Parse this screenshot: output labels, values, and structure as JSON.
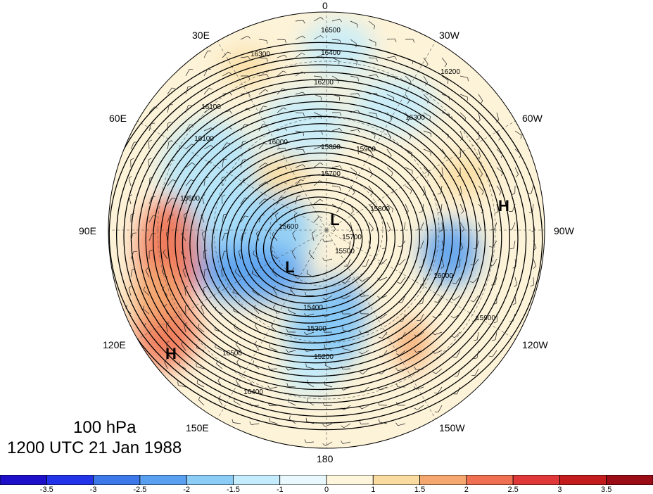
{
  "title": {
    "level": "100 hPa",
    "datetime": "1200 UTC 21 Jan 1988"
  },
  "longitude_labels": [
    {
      "id": "lon-0",
      "text": "0"
    },
    {
      "id": "lon-30w",
      "text": "30W"
    },
    {
      "id": "lon-60w",
      "text": "60W"
    },
    {
      "id": "lon-90w",
      "text": "90W"
    },
    {
      "id": "lon-120w",
      "text": "120W"
    },
    {
      "id": "lon-150w",
      "text": "150W"
    },
    {
      "id": "lon-180",
      "text": "180"
    },
    {
      "id": "lon-150e",
      "text": "150E"
    },
    {
      "id": "lon-120e",
      "text": "120E"
    },
    {
      "id": "lon-90e",
      "text": "90E"
    },
    {
      "id": "lon-60e",
      "text": "60E"
    },
    {
      "id": "lon-30e",
      "text": "30E"
    }
  ],
  "pressure_centers": [
    {
      "label": "L",
      "kind": "low"
    },
    {
      "label": "L",
      "kind": "low"
    },
    {
      "label": "H",
      "kind": "high"
    },
    {
      "label": "H",
      "kind": "high"
    }
  ],
  "contour_labels": [
    "16500",
    "16400",
    "16300",
    "16200",
    "16100",
    "16000",
    "15900",
    "15800",
    "15700",
    "15600",
    "15500",
    "15400",
    "15300",
    "15200"
  ],
  "colorbar": {
    "ticks": [
      "-3.5",
      "-3",
      "-2.5",
      "-2",
      "-1.5",
      "-1",
      "0",
      "1",
      "1.5",
      "2",
      "2.5",
      "3",
      "3.5"
    ],
    "colors": [
      "#1d10c8",
      "#2233e8",
      "#3c78e8",
      "#5aa0f0",
      "#8ccdf8",
      "#c4ecfc",
      "#e8f8fc",
      "#fdf6dc",
      "#fadca0",
      "#f4a870",
      "#ee7050",
      "#e03838",
      "#c21c1c",
      "#9a0c16"
    ]
  }
}
